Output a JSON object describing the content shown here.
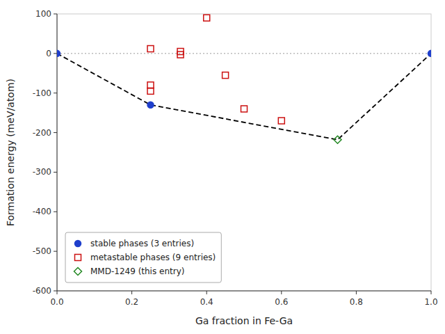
{
  "chart_data": {
    "type": "scatter",
    "xlabel": "Ga fraction in Fe-Ga",
    "ylabel": "Formation energy (meV/atom)",
    "xlim": [
      0.0,
      1.0
    ],
    "ylim": [
      -600,
      100
    ],
    "xticks": [
      {
        "value": 0.0,
        "label": "0.0"
      },
      0.2,
      0.4,
      0.6,
      0.8,
      {
        "value": 1.0,
        "label": "1.0"
      }
    ],
    "yticks": [
      100,
      0,
      -100,
      -200,
      -300,
      -400,
      -500,
      -600
    ],
    "grid": false,
    "legend": "lower left",
    "hlines": [
      {
        "value": 0,
        "color": "#999999",
        "line_style": "dotted"
      }
    ],
    "series": [
      {
        "type": "line",
        "color": "black",
        "line_style": "dashed",
        "x": [
          0.0,
          0.25,
          0.75,
          1.0
        ],
        "values": [
          0.0,
          -130,
          -218,
          0.0
        ]
      },
      {
        "type": "scatter",
        "name": "stable phases (3 entries)",
        "color": "#1f3fcc",
        "marker": "circle",
        "x": [
          0.0,
          0.25,
          1.0
        ],
        "values": [
          0.0,
          -130,
          0.0
        ]
      },
      {
        "type": "scatter",
        "name": "metastable phases (9 entries)",
        "color": "#cc1111",
        "marker": "open-square",
        "x": [
          0.25,
          0.25,
          0.25,
          0.33,
          0.33,
          0.4,
          0.45,
          0.5,
          0.6
        ],
        "values": [
          -80,
          -95,
          12,
          5,
          -3,
          90,
          -55,
          -140,
          -170
        ]
      },
      {
        "type": "scatter",
        "name": "MMD-1249 (this entry)",
        "color": "#228822",
        "marker": "open-diamond",
        "x": [
          0.75
        ],
        "values": [
          -218
        ]
      }
    ]
  }
}
